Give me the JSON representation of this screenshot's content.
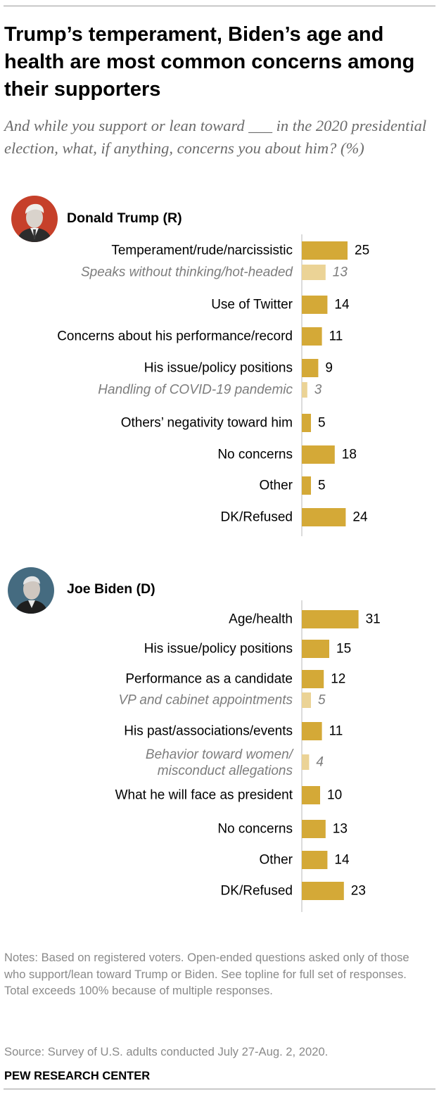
{
  "title": "Trump’s temperament, Biden’s age and health are most common concerns among their supporters",
  "subtitle": "And while you support or lean toward ___ in the 2020 presidential election, what, if anything, concerns you about him? (%)",
  "notes": "Notes: Based on registered voters. Open-ended questions asked only of those who support/lean toward Trump or Biden. See topline for full set of responses. Total exceeds 100% because of multiple responses.",
  "source": "Source: Survey of U.S. adults conducted July 27-Aug. 2, 2020.",
  "brand": "PEW RESEARCH CENTER",
  "colors": {
    "main_bar": "#d4a937",
    "sub_bar": "#ebd396",
    "sub_text": "#7d7d7d",
    "axis": "#b8b8b8"
  },
  "groups": [
    {
      "name": "Donald Trump (R)",
      "avatar": "trump-portrait-icon",
      "avatar_bg": "#c6402a"
    },
    {
      "name": "Joe Biden (D)",
      "avatar": "biden-portrait-icon",
      "avatar_bg": "#456b80"
    }
  ],
  "chart_data": [
    {
      "type": "bar",
      "orientation": "horizontal",
      "title": "Donald Trump (R)",
      "xlim": [
        0,
        31
      ],
      "categories": [
        "Temperament/rude/narcissistic",
        "Speaks without thinking/hot-headed",
        "Use of Twitter",
        "Concerns about his performance/record",
        "His issue/policy positions",
        "Handling of COVID-19 pandemic",
        "Others’ negativity toward him",
        "No concerns",
        "Other",
        "DK/Refused"
      ],
      "values": [
        25,
        13,
        14,
        11,
        9,
        3,
        5,
        18,
        5,
        24
      ],
      "subcategory": [
        false,
        true,
        false,
        false,
        false,
        true,
        false,
        false,
        false,
        false
      ]
    },
    {
      "type": "bar",
      "orientation": "horizontal",
      "title": "Joe Biden (D)",
      "xlim": [
        0,
        31
      ],
      "categories": [
        "Age/health",
        "His issue/policy positions",
        "Performance as a candidate",
        "VP and cabinet appointments",
        "His past/associations/events",
        "Behavior toward women/ misconduct allegations",
        "What he will face as president",
        "No concerns",
        "Other",
        "DK/Refused"
      ],
      "values": [
        31,
        15,
        12,
        5,
        11,
        4,
        10,
        13,
        14,
        23
      ],
      "subcategory": [
        false,
        false,
        false,
        true,
        false,
        true,
        false,
        false,
        false,
        false
      ]
    }
  ]
}
